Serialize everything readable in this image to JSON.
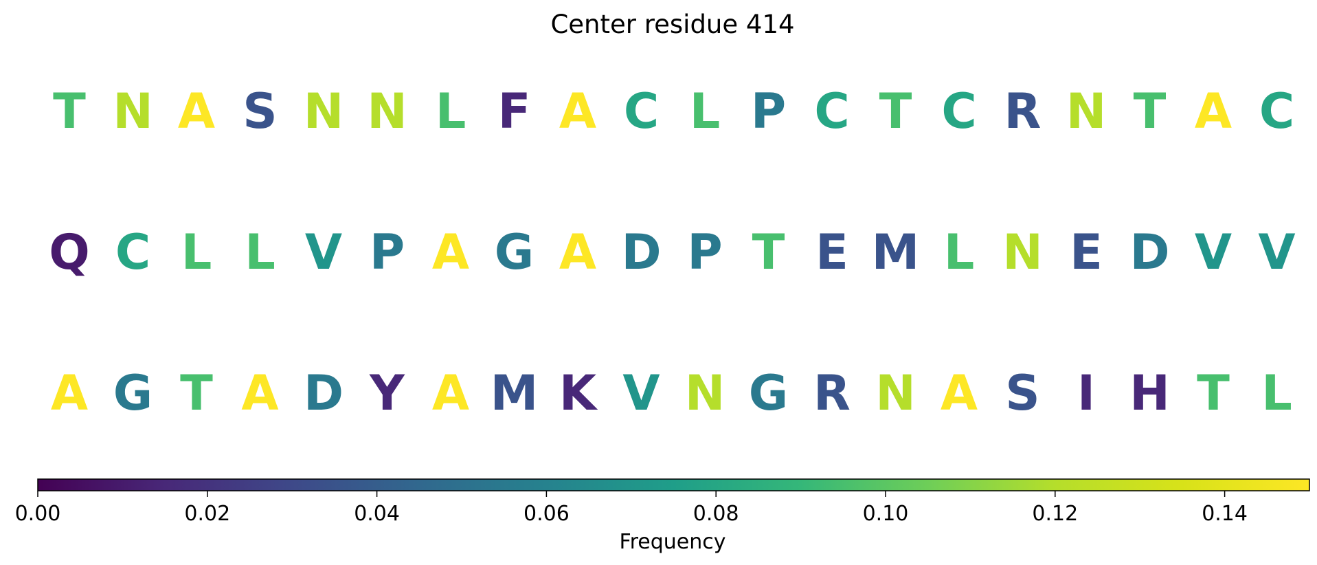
{
  "chart_data": {
    "type": "heatmap",
    "title": "Center residue 414",
    "colormap": "viridis",
    "rows": [
      {
        "residues": [
          "T",
          "N",
          "A",
          "S",
          "N",
          "N",
          "L",
          "F",
          "A",
          "C",
          "L",
          "P",
          "C",
          "T",
          "C",
          "R",
          "N",
          "T",
          "A",
          "C"
        ],
        "frequencies": [
          0.095,
          0.12,
          0.15,
          0.035,
          0.12,
          0.12,
          0.095,
          0.015,
          0.15,
          0.08,
          0.095,
          0.055,
          0.08,
          0.095,
          0.08,
          0.035,
          0.12,
          0.095,
          0.15,
          0.08
        ]
      },
      {
        "residues": [
          "Q",
          "C",
          "L",
          "L",
          "V",
          "P",
          "A",
          "G",
          "A",
          "D",
          "P",
          "T",
          "E",
          "M",
          "L",
          "N",
          "E",
          "D",
          "V",
          "V"
        ],
        "frequencies": [
          0.01,
          0.08,
          0.095,
          0.095,
          0.07,
          0.055,
          0.15,
          0.055,
          0.15,
          0.055,
          0.055,
          0.095,
          0.035,
          0.035,
          0.095,
          0.12,
          0.035,
          0.055,
          0.07,
          0.07
        ]
      },
      {
        "residues": [
          "A",
          "G",
          "T",
          "A",
          "D",
          "Y",
          "A",
          "M",
          "K",
          "V",
          "N",
          "G",
          "R",
          "N",
          "A",
          "S",
          "I",
          "H",
          "T",
          "L"
        ],
        "frequencies": [
          0.15,
          0.055,
          0.095,
          0.15,
          0.055,
          0.015,
          0.15,
          0.035,
          0.015,
          0.07,
          0.12,
          0.055,
          0.035,
          0.12,
          0.15,
          0.035,
          0.015,
          0.015,
          0.095,
          0.095
        ]
      }
    ],
    "colorbar": {
      "label": "Frequency",
      "min": 0.0,
      "max": 0.15,
      "ticks": [
        0.0,
        0.02,
        0.04,
        0.06,
        0.08,
        0.1,
        0.12,
        0.14
      ],
      "tick_labels": [
        "0.00",
        "0.02",
        "0.04",
        "0.06",
        "0.08",
        "0.10",
        "0.12",
        "0.14"
      ]
    }
  }
}
